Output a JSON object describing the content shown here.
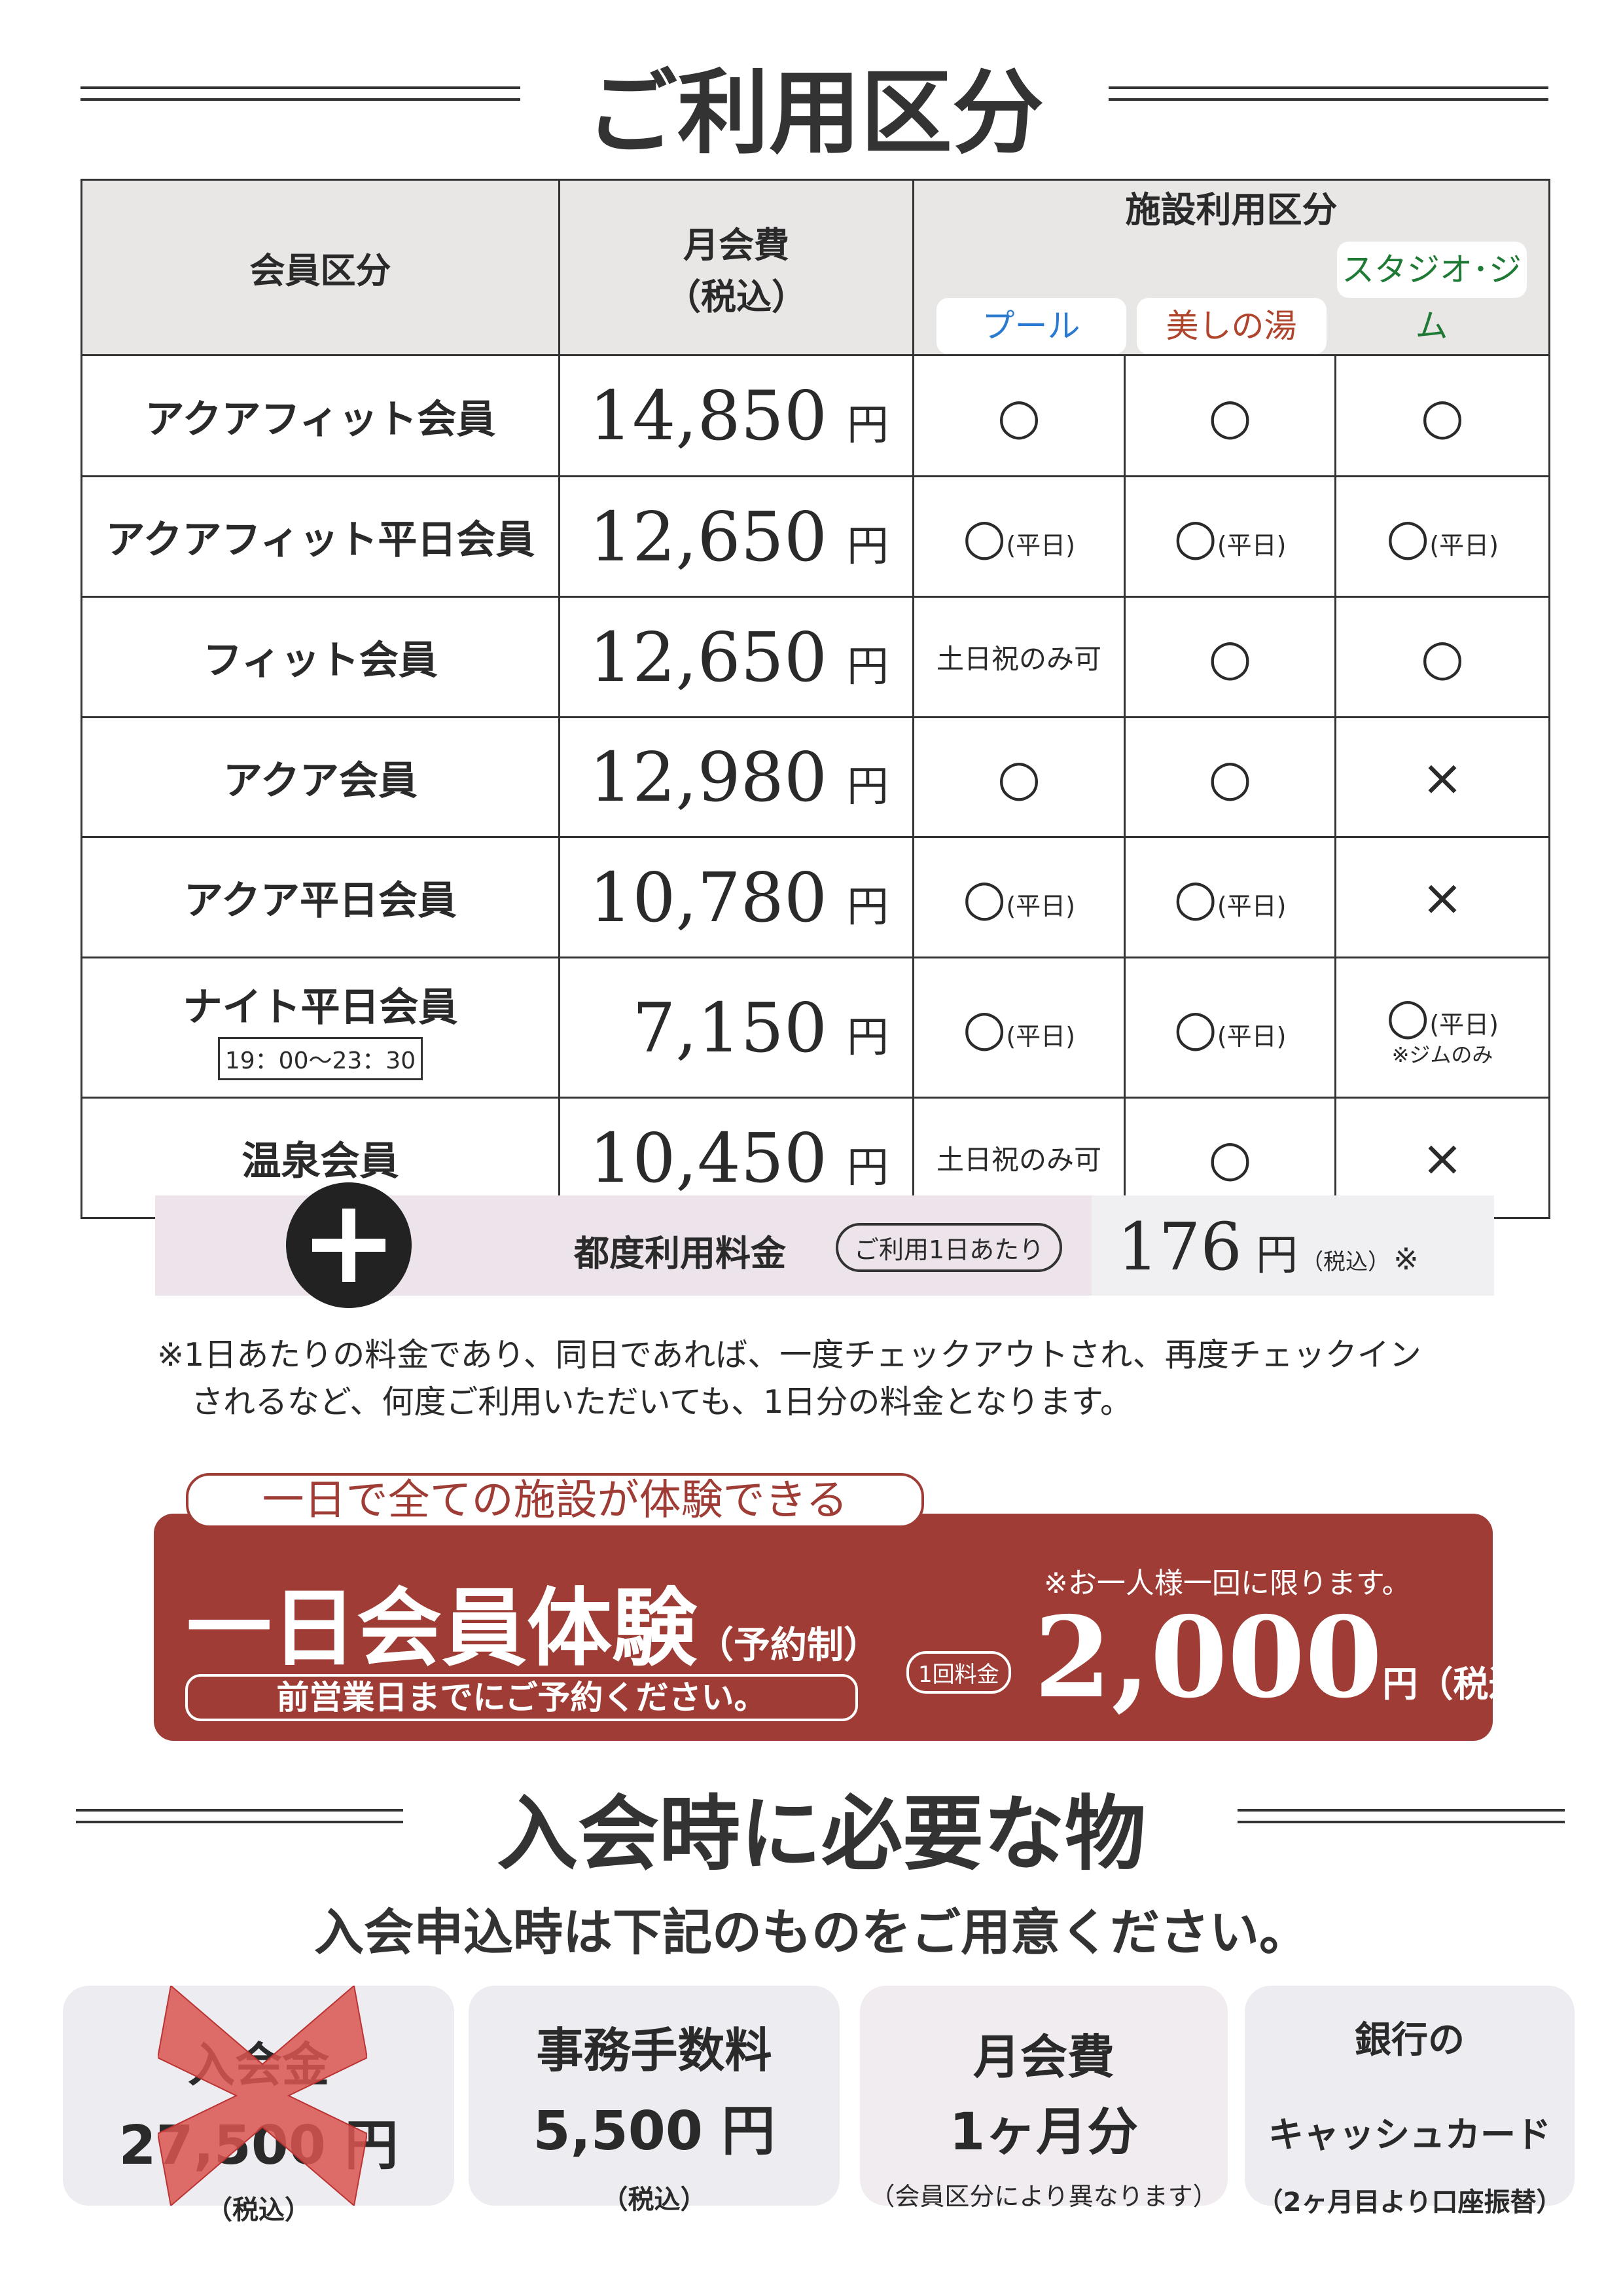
{
  "section1": {
    "title": "ご利用区分",
    "header": {
      "member_type": "会員区分",
      "monthly_fee": "月会費",
      "tax_included": "（税込）",
      "facility_use": "施設利用区分",
      "facilities": [
        {
          "label": "プール",
          "color": "#2a7bd0"
        },
        {
          "label": "美しの湯",
          "color": "#b0452e"
        },
        {
          "label": "スタジオ･ジム",
          "color": "#1f7a35"
        }
      ]
    },
    "currency": "円",
    "rows": [
      {
        "name": "アクアフィット会員",
        "price": "14,850",
        "cells": [
          {
            "mark": "○"
          },
          {
            "mark": "○"
          },
          {
            "mark": "○"
          }
        ]
      },
      {
        "name": "アクアフィット平日会員",
        "price": "12,650",
        "cells": [
          {
            "mark": "○",
            "note": "(平日)"
          },
          {
            "mark": "○",
            "note": "(平日)"
          },
          {
            "mark": "○",
            "note": "(平日)"
          }
        ]
      },
      {
        "name": "フィット会員",
        "price": "12,650",
        "cells": [
          {
            "text": "土日祝のみ可"
          },
          {
            "mark": "○"
          },
          {
            "mark": "○"
          }
        ]
      },
      {
        "name": "アクア会員",
        "price": "12,980",
        "cells": [
          {
            "mark": "○"
          },
          {
            "mark": "○"
          },
          {
            "mark": "×"
          }
        ]
      },
      {
        "name": "アクア平日会員",
        "price": "10,780",
        "cells": [
          {
            "mark": "○",
            "note": "(平日)"
          },
          {
            "mark": "○",
            "note": "(平日)"
          },
          {
            "mark": "×"
          }
        ]
      },
      {
        "name": "ナイト平日会員",
        "hours": "19：00～23：30",
        "price": "7,150",
        "cells": [
          {
            "mark": "○",
            "note": "(平日)"
          },
          {
            "mark": "○",
            "note": "(平日)"
          },
          {
            "mark": "○",
            "note": "(平日)",
            "sub": "※ジムのみ"
          }
        ]
      },
      {
        "name": "温泉会員",
        "price": "10,450",
        "cells": [
          {
            "text": "土日祝のみ可"
          },
          {
            "mark": "○"
          },
          {
            "mark": "×"
          }
        ]
      }
    ]
  },
  "dropin": {
    "icon": "plus-icon",
    "label": "都度利用料金",
    "per_day": "ご利用1日あたり",
    "price": "176",
    "yen": "円",
    "tax": "（税込）",
    "asterisk": "※",
    "note_line1": "※1日あたりの料金であり、同日であれば、一度チェックアウトされ、再度チェックイン",
    "note_line2": "されるなど、何度ご利用いただいても、1日分の料金となります。"
  },
  "trial": {
    "tagline": "一日で全ての施設が体験できる",
    "title": "一日会員体験",
    "reservation": "（予約制）",
    "reserve_note": "前営業日までにご予約ください。",
    "limit_note": "※お一人様一回に限ります。",
    "fee_label": "1回料金",
    "price": "2,000",
    "yen_tax": "円（税込）",
    "color": "#9e3c35"
  },
  "section2": {
    "title": "入会時に必要な物",
    "subtitle": "入会申込時は下記のものをご用意ください。",
    "cards": [
      {
        "title": "入会金",
        "value": "27,500 円",
        "note": "（税込）",
        "crossed_out": true
      },
      {
        "title": "事務手数料",
        "value": "5,500 円",
        "note": "（税込）"
      },
      {
        "title": "月会費",
        "value": "1ヶ月分",
        "note": "（会員区分により異なります）"
      },
      {
        "title": "銀行の",
        "value": "キャッシュカード",
        "note": "（2ヶ月目より口座振替）"
      }
    ]
  }
}
